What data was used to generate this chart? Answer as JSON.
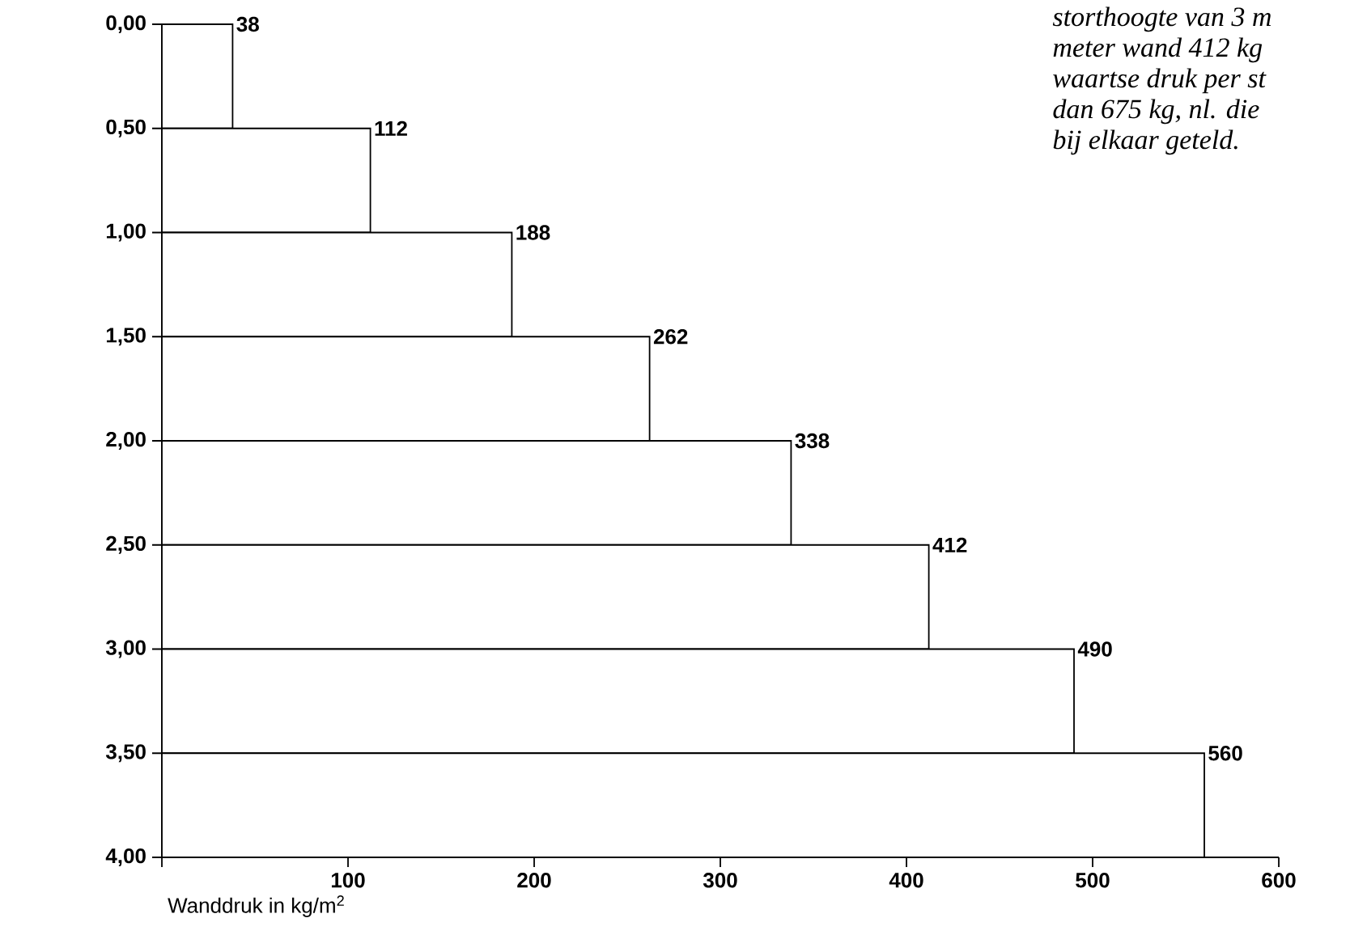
{
  "chart_data": {
    "type": "histogram",
    "orientation": "horizontal",
    "xlabel": "Wanddruk in kg/m$^{2}$",
    "bins": [
      0,
      0.5,
      1,
      1.5,
      2,
      2.5,
      3,
      3.5,
      4
    ],
    "values": [
      38,
      112,
      188,
      262,
      338,
      412,
      490,
      560
    ],
    "color": "#ffffff",
    "data_labels": true,
    "xlim": [
      0,
      600
    ],
    "xticks": [
      {
        "value": 0,
        "label": null
      },
      100,
      200,
      300,
      400,
      500,
      600
    ],
    "ylim": [
      4,
      0
    ],
    "yticks": [
      {
        "value": 0,
        "label": "0,00"
      },
      {
        "value": 0.5,
        "label": "0,50"
      },
      {
        "value": 1,
        "label": "1,00"
      },
      {
        "value": 1.5,
        "label": "1,50"
      },
      {
        "value": 2,
        "label": "2,00"
      },
      {
        "value": 2.5,
        "label": "2,50"
      },
      {
        "value": 3,
        "label": "3,00"
      },
      {
        "value": 3.5,
        "label": "3,50"
      },
      {
        "value": 4,
        "label": "4,00"
      }
    ],
    "annotations": [
      "storthoogte van 3 m",
      "meter wand 412 kg",
      "waartse druk per st",
      "dan 675 kg, nl. die",
      "bij elkaar geteld."
    ]
  }
}
